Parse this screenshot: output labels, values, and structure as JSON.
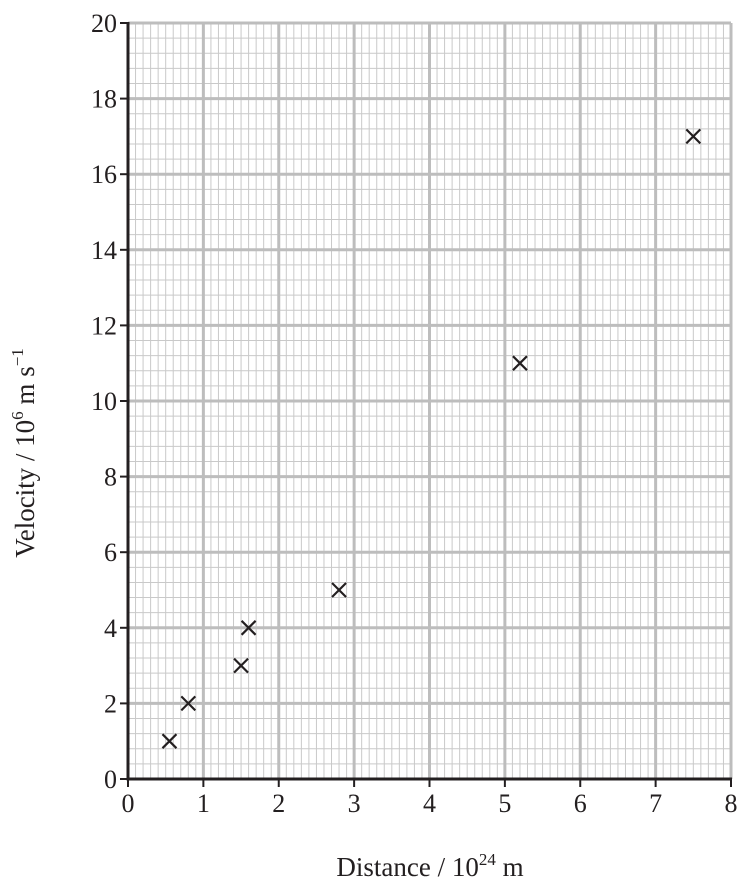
{
  "chart_data": {
    "type": "scatter",
    "title": "",
    "xlabel": {
      "text": "Distance / 10",
      "sup": "24",
      "unit": " m"
    },
    "ylabel": {
      "text": "Velocity / 10",
      "sup": "6",
      "unit": " m s",
      "unit_sup": "−1"
    },
    "xlim": [
      0,
      8
    ],
    "ylim": [
      0,
      20
    ],
    "xticks": [
      0,
      1,
      2,
      3,
      4,
      5,
      6,
      7,
      8
    ],
    "yticks": [
      0,
      2,
      4,
      6,
      8,
      10,
      12,
      14,
      16,
      18,
      20
    ],
    "grid": true,
    "marker": "×",
    "points": [
      {
        "x": 0.55,
        "y": 1
      },
      {
        "x": 0.8,
        "y": 2
      },
      {
        "x": 1.5,
        "y": 3
      },
      {
        "x": 1.6,
        "y": 4
      },
      {
        "x": 2.8,
        "y": 5
      },
      {
        "x": 5.2,
        "y": 11
      },
      {
        "x": 7.5,
        "y": 17
      }
    ],
    "colors": {
      "axis": "#231f20",
      "grid": "#c0c0c0",
      "marker": "#231f20"
    }
  }
}
